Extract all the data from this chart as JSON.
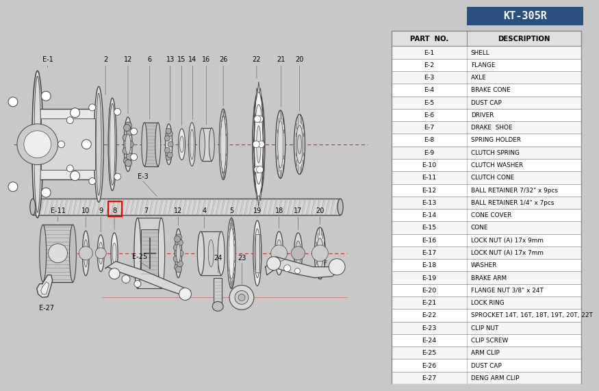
{
  "title_badge": "KT-305R",
  "title_badge_bg": "#2a5080",
  "title_badge_fg": "#ffffff",
  "bg_color": "#c8c8c8",
  "diagram_bg": "#f5f5f5",
  "table_bg": "#f5f5f5",
  "table_header_bg": "#e0e0e0",
  "table_line_color": "#888888",
  "parts": [
    [
      "E-1",
      "SHELL"
    ],
    [
      "E-2",
      "FLANGE"
    ],
    [
      "E-3",
      "AXLE"
    ],
    [
      "E-4",
      "BRAKE CONE"
    ],
    [
      "E-5",
      "DUST CAP"
    ],
    [
      "E-6",
      "DRIVER"
    ],
    [
      "E-7",
      "DRAKE  SHOE"
    ],
    [
      "E-8",
      "SPRING HOLDER"
    ],
    [
      "E-9",
      "CLUTCH SPRING"
    ],
    [
      "E-10",
      "CLUTCH WASHER"
    ],
    [
      "E-11",
      "CLUTCH CONE"
    ],
    [
      "E-12",
      "BALL RETAINER 7/32\" x 9pcs"
    ],
    [
      "E-13",
      "BALL RETAINER 1/4\" x 7pcs"
    ],
    [
      "E-14",
      "CONE COVER"
    ],
    [
      "E-15",
      "CONE"
    ],
    [
      "E-16",
      "LOCK NUT (A) 17x 9mm"
    ],
    [
      "E-17",
      "LOCK NUT (A) 17x 7mm"
    ],
    [
      "E-18",
      "WASHER"
    ],
    [
      "E-19",
      "BRAKE ARM"
    ],
    [
      "E-20",
      "FLANGE NUT 3/8\" x 24T"
    ],
    [
      "E-21",
      "LOCK RING"
    ],
    [
      "E-22",
      "SPROCKET 14T, 16T, 18T, 19T, 20T, 22T"
    ],
    [
      "E-23",
      "CLIP NUT"
    ],
    [
      "E-24",
      "CLIP SCREW"
    ],
    [
      "E-25",
      "ARM CLIP"
    ],
    [
      "E-26",
      "DUST CAP"
    ],
    [
      "E-27",
      "DENG ARM CLIP"
    ]
  ],
  "red_line_color": "#cc3333",
  "draw_color": "#444444",
  "label_fontsize": 7.0,
  "table_fontsize": 6.8
}
